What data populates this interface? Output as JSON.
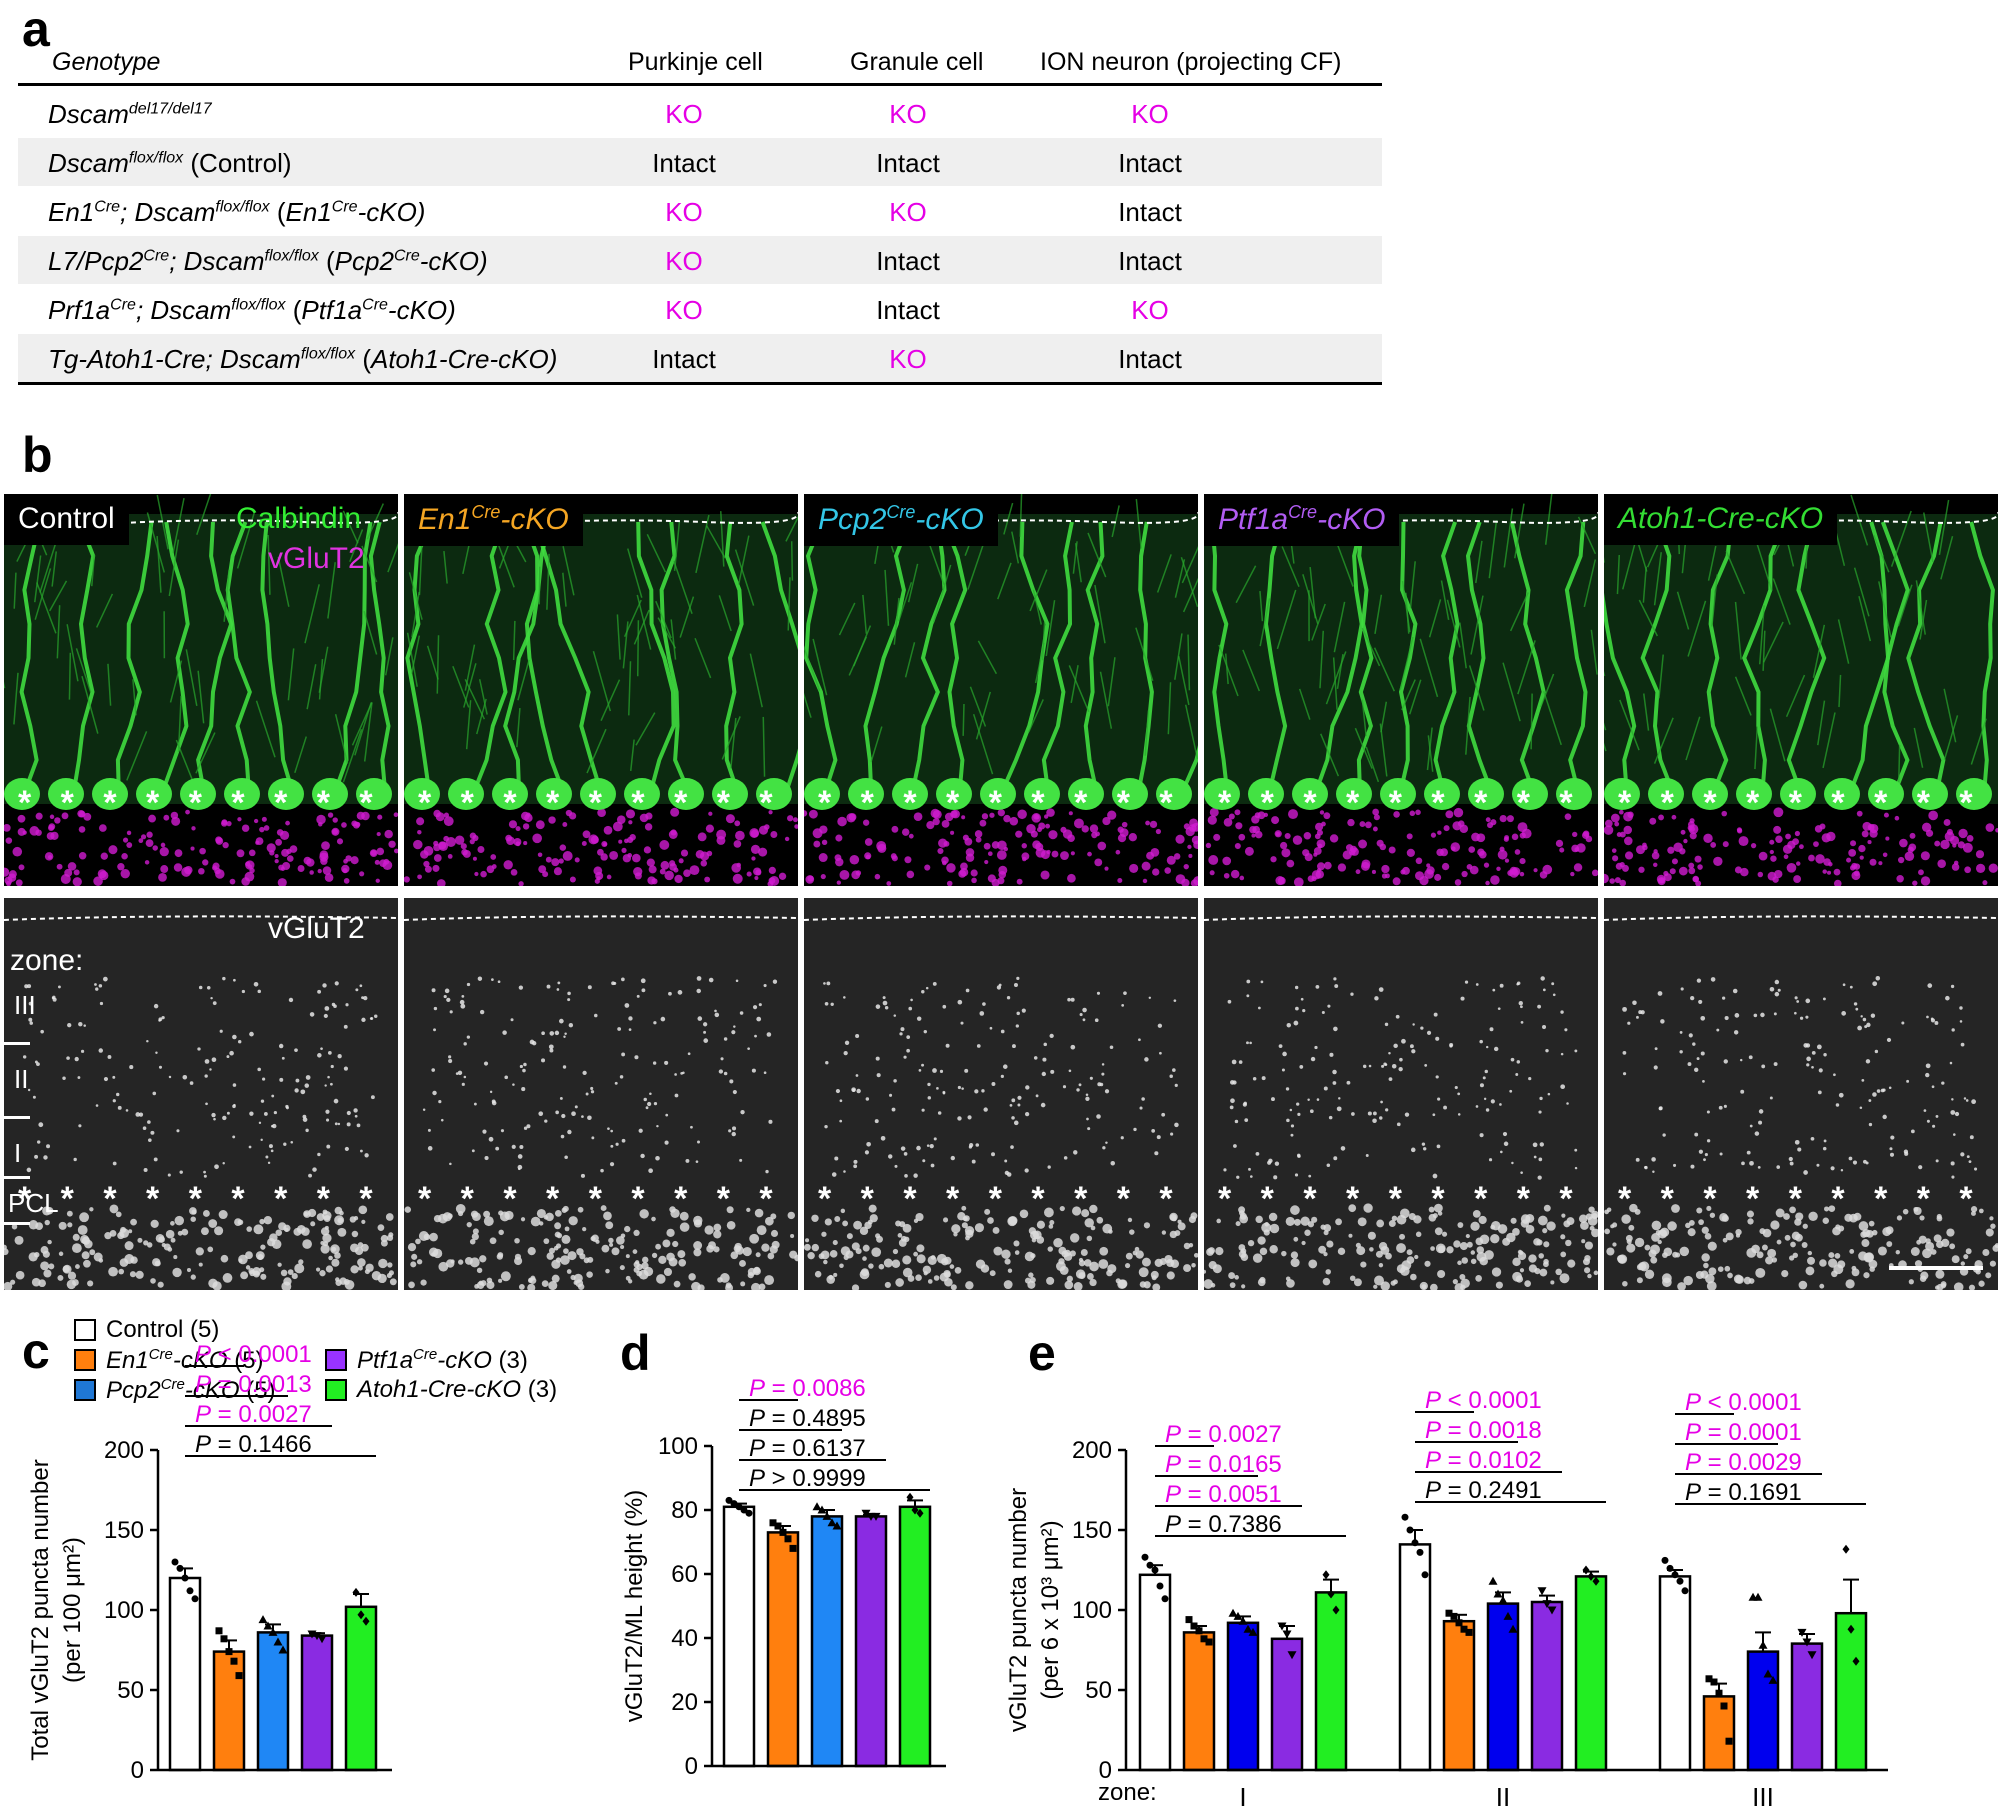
{
  "figure": {
    "panel_a": {
      "letter": "a",
      "headers": [
        "Genotype",
        "Purkinje cell",
        "Granule cell",
        "ION neuron (projecting CF)"
      ],
      "rows": [
        {
          "gen": [
            "Dscam",
            "del17/del17",
            ""
          ],
          "pc": "KO",
          "gc": "KO",
          "ion": "KO"
        },
        {
          "gen": [
            "Dscam",
            "flox/flox",
            " (Control)"
          ],
          "pc": "Intact",
          "gc": "Intact",
          "ion": "Intact"
        },
        {
          "gen": [
            "En1",
            "Cre",
            "; Dscam",
            "flox/flox",
            " (",
            "En1",
            "Cre",
            "-cKO)"
          ],
          "pc": "KO",
          "gc": "KO",
          "ion": "Intact"
        },
        {
          "gen": [
            "L7/Pcp2",
            "Cre",
            "; Dscam",
            "flox/flox",
            " (",
            "Pcp2",
            "Cre",
            "-cKO)"
          ],
          "pc": "KO",
          "gc": "Intact",
          "ion": "Intact"
        },
        {
          "gen": [
            "Prf1a",
            "Cre",
            "; Dscam",
            "flox/flox",
            " (",
            "Ptf1a",
            "Cre",
            "-cKO)"
          ],
          "pc": "KO",
          "gc": "Intact",
          "ion": "KO"
        },
        {
          "gen": [
            "Tg-Atoh1-Cre",
            "",
            "; Dscam",
            "flox/flox",
            " (",
            "Atoh1-Cre-cKO",
            "",
            ")"
          ],
          "pc": "Intact",
          "gc": "KO",
          "ion": "Intact"
        }
      ]
    },
    "panel_b": {
      "letter": "b",
      "panels": [
        {
          "name": "Control",
          "sup": "",
          "rest": "",
          "color": "#ffffff"
        },
        {
          "name": "En1",
          "sup": "Cre",
          "rest": "-cKO",
          "color": "#f5a623"
        },
        {
          "name": "Pcp2",
          "sup": "Cre",
          "rest": "-cKO",
          "color": "#33c6e6"
        },
        {
          "name": "Ptf1a",
          "sup": "Cre",
          "rest": "-cKO",
          "color": "#b15cf2"
        },
        {
          "name": "Atoh1-Cre-cKO",
          "sup": "",
          "rest": "",
          "color": "#33dd33"
        }
      ],
      "calbindin_label": "Calbindin",
      "vglut2_label": "vGluT2",
      "vglut2_label_bottom": "vGluT2",
      "zone_label": "zone:",
      "zones": [
        "III",
        "II",
        "I",
        "PCL"
      ]
    },
    "legend": {
      "items": [
        {
          "name": "Control",
          "n": " (5)",
          "color": "#ffffff",
          "italic": false,
          "sup": ""
        },
        {
          "name": "En1",
          "sup": "Cre",
          "rest": "-cKO",
          "n": " (5)",
          "color": "#ff7f0e",
          "italic": true
        },
        {
          "name": "Ptf1a",
          "sup": "Cre",
          "rest": "-cKO",
          "n": " (3)",
          "color": "#9933ff",
          "italic": true
        },
        {
          "name": "Pcp2",
          "sup": "Cre",
          "rest": "-cKO",
          "n": " (5)",
          "color": "#1f77d4",
          "italic": true
        },
        {
          "name": "Atoh1-Cre-cKO",
          "sup": "",
          "rest": "",
          "n": " (3)",
          "color": "#22ee22",
          "italic": true
        }
      ]
    }
  },
  "chart_data": [
    {
      "panel": "c",
      "type": "bar",
      "categories": [
        "Control",
        "En1Cre-cKO",
        "Pcp2Cre-cKO",
        "Ptf1aCre-cKO",
        "Atoh1-Cre-cKO"
      ],
      "values": [
        120,
        74,
        86,
        84,
        102
      ],
      "errors": [
        6,
        7,
        5,
        1.5,
        8
      ],
      "points": [
        [
          130,
          126,
          120,
          112,
          107
        ],
        [
          87,
          82,
          74,
          68,
          59
        ],
        [
          94,
          90,
          86,
          80,
          75
        ],
        [
          85,
          84,
          82
        ],
        [
          111,
          97,
          93
        ]
      ],
      "ylabel": "Total vGluT2 puncta number",
      "ylabel2": "(per 100 μm²)",
      "ylim": [
        0,
        200
      ],
      "yticks": [
        0,
        50,
        100,
        150,
        200
      ],
      "pvalues": [
        {
          "text": "= 0.1466",
          "to": 4,
          "magenta": false
        },
        {
          "text": "= 0.0027",
          "to": 3,
          "magenta": true
        },
        {
          "text": "= 0.0013",
          "to": 2,
          "magenta": true
        },
        {
          "text": "< 0.0001",
          "to": 1,
          "magenta": true
        }
      ]
    },
    {
      "panel": "d",
      "type": "bar",
      "categories": [
        "Control",
        "En1Cre-cKO",
        "Pcp2Cre-cKO",
        "Ptf1aCre-cKO",
        "Atoh1-Cre-cKO"
      ],
      "values": [
        81,
        73,
        78,
        78,
        81
      ],
      "errors": [
        1,
        2,
        2,
        0.5,
        2
      ],
      "points": [
        [
          83,
          82,
          81,
          80,
          79
        ],
        [
          76,
          75,
          73,
          71,
          68
        ],
        [
          81,
          80,
          78,
          76,
          75
        ],
        [
          79,
          78,
          78
        ],
        [
          84,
          80,
          79
        ]
      ],
      "ylabel": "vGluT2/ML height (%)",
      "ylim": [
        0,
        100
      ],
      "yticks": [
        0,
        20,
        40,
        60,
        80,
        100
      ],
      "pvalues": [
        {
          "text": "> 0.9999",
          "to": 4,
          "magenta": false
        },
        {
          "text": "= 0.6137",
          "to": 3,
          "magenta": false
        },
        {
          "text": "= 0.4895",
          "to": 2,
          "magenta": false
        },
        {
          "text": "= 0.0086",
          "to": 1,
          "magenta": true
        }
      ]
    },
    {
      "panel": "e",
      "type": "bar",
      "zone_label": "zone:",
      "groups": [
        "I",
        "II",
        "III"
      ],
      "categories": [
        "Control",
        "En1Cre-cKO",
        "Pcp2Cre-cKO",
        "Ptf1aCre-cKO",
        "Atoh1-Cre-cKO"
      ],
      "series_values": [
        [
          122,
          86,
          92,
          82,
          111
        ],
        [
          141,
          93,
          104,
          105,
          121
        ],
        [
          121,
          46,
          74,
          79,
          98
        ]
      ],
      "series_errors": [
        [
          6,
          4,
          4,
          8,
          8
        ],
        [
          9,
          4,
          7,
          4,
          3
        ],
        [
          4,
          8,
          12,
          6,
          21
        ]
      ],
      "series_points": [
        [
          [
            133,
            128,
            125,
            115,
            107
          ],
          [
            94,
            90,
            87,
            82,
            80
          ],
          [
            98,
            96,
            93,
            88,
            86
          ],
          [
            90,
            85,
            72
          ],
          [
            122,
            110,
            100
          ]
        ],
        [
          [
            158,
            150,
            142,
            136,
            122
          ],
          [
            98,
            96,
            92,
            88,
            86
          ],
          [
            118,
            110,
            106,
            96,
            88
          ],
          [
            112,
            104,
            100
          ],
          [
            125,
            121,
            118
          ]
        ],
        [
          [
            131,
            126,
            122,
            118,
            112
          ],
          [
            57,
            55,
            48,
            40,
            18
          ],
          [
            108,
            108,
            78,
            60,
            56
          ],
          [
            86,
            80,
            72
          ],
          [
            138,
            88,
            68
          ]
        ]
      ],
      "ylabel": "vGluT2 puncta number",
      "ylabel2": "(per 6 x 10³ μm²)",
      "ylim": [
        0,
        200
      ],
      "yticks": [
        0,
        50,
        100,
        150,
        200
      ],
      "pvalues": [
        [
          {
            "text": "= 0.7386",
            "to": 4,
            "magenta": false
          },
          {
            "text": "= 0.0051",
            "to": 3,
            "magenta": true
          },
          {
            "text": "= 0.0165",
            "to": 2,
            "magenta": true
          },
          {
            "text": "= 0.0027",
            "to": 1,
            "magenta": true
          }
        ],
        [
          {
            "text": "= 0.2491",
            "to": 4,
            "magenta": false
          },
          {
            "text": "= 0.0102",
            "to": 3,
            "magenta": true
          },
          {
            "text": "= 0.0018",
            "to": 2,
            "magenta": true
          },
          {
            "text": "< 0.0001",
            "to": 1,
            "magenta": true
          }
        ],
        [
          {
            "text": "= 0.1691",
            "to": 4,
            "magenta": false
          },
          {
            "text": "= 0.0029",
            "to": 3,
            "magenta": true
          },
          {
            "text": "= 0.0001",
            "to": 2,
            "magenta": true
          },
          {
            "text": "< 0.0001",
            "to": 1,
            "magenta": true
          }
        ]
      ]
    }
  ],
  "colors": {
    "control": "#ffffff",
    "en1": "#ff7f0e",
    "pcp2_c": "#1f87f5",
    "pcp2_e": "#0000ee",
    "ptf1a": "#8a2be2",
    "atoh1": "#22ee22",
    "magenta": "#e500e5"
  }
}
